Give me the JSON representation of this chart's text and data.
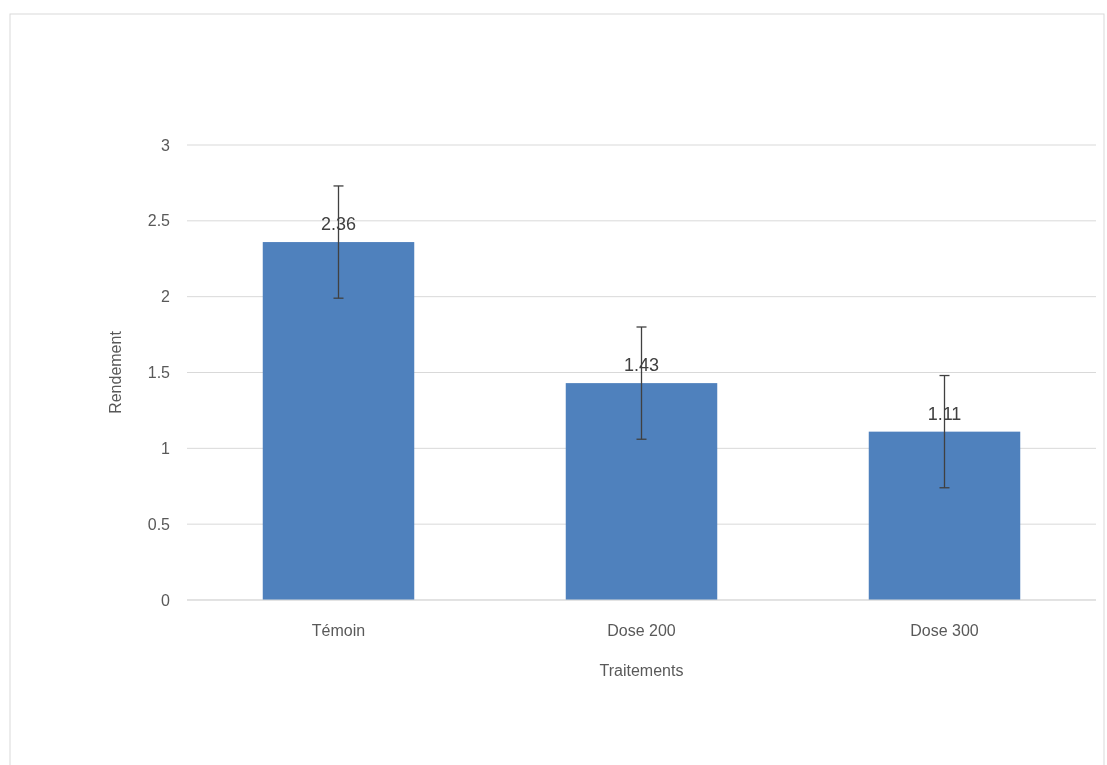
{
  "chart_data": {
    "type": "bar",
    "xlabel": "Traitements",
    "ylabel": "Rendement",
    "categories": [
      "Témoin",
      "Dose 200",
      "Dose 300"
    ],
    "values": [
      2.36,
      1.43,
      1.11
    ],
    "errors": [
      0.37,
      0.37,
      0.37
    ],
    "color": "#4f81bd",
    "ylim": [
      0,
      3
    ],
    "yticks": [
      0,
      0.5,
      1,
      1.5,
      2,
      2.5,
      3
    ],
    "grid": "y",
    "data_labels": true
  }
}
